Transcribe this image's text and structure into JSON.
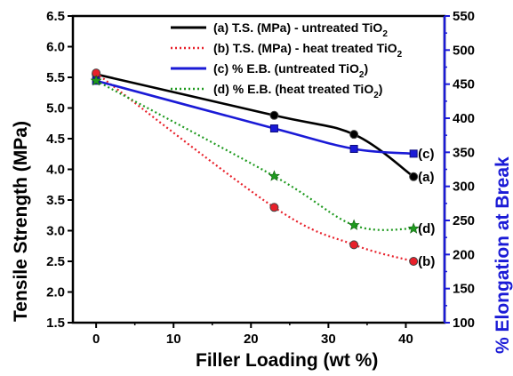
{
  "chart_data": {
    "type": "line",
    "xlabel": "Filler Loading (wt %)",
    "ylabel": "Tensile Strength (MPa)",
    "y2label": "% Elongation at Break",
    "xlim": [
      -3,
      45
    ],
    "ylim": [
      1.5,
      6.5
    ],
    "y2lim": [
      100,
      550
    ],
    "xticks": [
      0,
      10,
      20,
      30,
      40
    ],
    "yticks": [
      1.5,
      2.0,
      2.5,
      3.0,
      3.5,
      4.0,
      4.5,
      5.0,
      5.5,
      6.0,
      6.5
    ],
    "y2ticks": [
      100,
      150,
      200,
      250,
      300,
      350,
      400,
      450,
      500,
      550
    ],
    "legend_position": "top-center",
    "grid": false,
    "series": [
      {
        "name": "(a) T.S. (MPa) - untreated TiO2",
        "axis": "left",
        "color": "#000000",
        "line": "solid",
        "marker": "circle",
        "x": [
          0,
          23,
          33.3,
          41
        ],
        "y": [
          5.55,
          4.88,
          4.57,
          3.88
        ],
        "end_label": "(a)"
      },
      {
        "name": "(b) T.S. (MPa) - heat treated TiO2",
        "axis": "left",
        "color": "#e8202a",
        "line": "dotted",
        "marker": "circle",
        "x": [
          0,
          23,
          33.3,
          41
        ],
        "y": [
          5.57,
          3.38,
          2.77,
          2.5
        ],
        "end_label": "(b)"
      },
      {
        "name": "(c) % E.B. (untreated TiO2)",
        "axis": "right",
        "color": "#1a1ad6",
        "line": "solid",
        "marker": "square",
        "x": [
          0,
          23,
          33.3,
          41
        ],
        "y": [
          455,
          385,
          355,
          348
        ],
        "end_label": "(c)"
      },
      {
        "name": "(d) % E.B. (heat treated TiO2)",
        "axis": "right",
        "color": "#1f9a1f",
        "line": "dotted",
        "marker": "star",
        "x": [
          0,
          23,
          33.3,
          41
        ],
        "y": [
          455,
          315,
          243,
          238
        ],
        "end_label": "(d)"
      }
    ]
  },
  "legend": {
    "a": {
      "main": "(a) T.S. (MPa) - untreated TiO",
      "sub": "2"
    },
    "b": {
      "main": "(b) T.S. (MPa) - heat treated TiO",
      "sub": "2"
    },
    "c": {
      "main": "(c) % E.B. (untreated TiO",
      "sub": "2",
      "tail": ")"
    },
    "d": {
      "main": "(d) % E.B. (heat treated TiO",
      "sub": "2",
      "tail": ")"
    }
  }
}
